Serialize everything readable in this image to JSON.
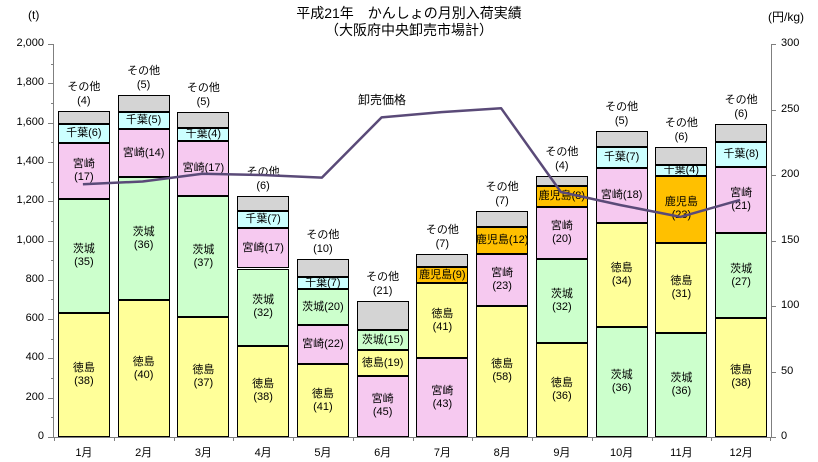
{
  "header": {
    "title_line1": "平成21年　かんしょの月別入荷実績",
    "title_line2": "（大阪府中央卸売市場計）",
    "unit_left": "(t)",
    "unit_right": "(円/kg)"
  },
  "chart_data": {
    "type": "bar",
    "subtype": "stacked-percentage-bars-with-price-line",
    "title": "平成21年　かんしょの月別入荷実績（大阪府中央卸売市場計）",
    "grid": "off",
    "legend": "none (labels drawn inside segments)",
    "categories": [
      "1月",
      "2月",
      "3月",
      "4月",
      "5月",
      "6月",
      "7月",
      "8月",
      "9月",
      "10月",
      "11月",
      "12月"
    ],
    "y_left": {
      "unit": "(t)",
      "min": 0,
      "max": 2000,
      "step": 200,
      "minor_step": 100
    },
    "y_right": {
      "unit": "(円/kg)",
      "min": 0,
      "max": 300,
      "step": 50
    },
    "region_colors": {
      "徳島": "#ffff99",
      "茨城": "#ccffcc",
      "宮崎": "#f6c9f0",
      "千葉": "#ccffff",
      "鹿児島": "#ffc000",
      "その他": "#d4d4d4"
    },
    "months": [
      {
        "month": "1月",
        "total_t": 1660,
        "segments": [
          {
            "name": "徳島",
            "pct": 38,
            "label_lines": [
              "徳島",
              "(38)"
            ]
          },
          {
            "name": "茨城",
            "pct": 35,
            "label_lines": [
              "茨城",
              "(35)"
            ]
          },
          {
            "name": "宮崎",
            "pct": 17,
            "label_lines": [
              "宮崎",
              "(17)"
            ]
          },
          {
            "name": "千葉",
            "pct": 6,
            "label_lines": [
              "千葉(6)"
            ]
          },
          {
            "name": "その他",
            "pct": 4,
            "label_lines": [
              "その他",
              "(4)"
            ],
            "label_outside": true
          }
        ]
      },
      {
        "month": "2月",
        "total_t": 1740,
        "segments": [
          {
            "name": "徳島",
            "pct": 40,
            "label_lines": [
              "徳島",
              "(40)"
            ]
          },
          {
            "name": "茨城",
            "pct": 36,
            "label_lines": [
              "茨城",
              "(36)"
            ]
          },
          {
            "name": "宮崎",
            "pct": 14,
            "label_lines": [
              "宮崎(14)"
            ]
          },
          {
            "name": "千葉",
            "pct": 5,
            "label_lines": [
              "千葉(5)"
            ]
          },
          {
            "name": "その他",
            "pct": 5,
            "label_lines": [
              "その他",
              "(5)"
            ],
            "label_outside": true
          }
        ]
      },
      {
        "month": "3月",
        "total_t": 1655,
        "segments": [
          {
            "name": "徳島",
            "pct": 37,
            "label_lines": [
              "徳島",
              "(37)"
            ]
          },
          {
            "name": "茨城",
            "pct": 37,
            "label_lines": [
              "茨城",
              "(37)"
            ]
          },
          {
            "name": "宮崎",
            "pct": 17,
            "label_lines": [
              "宮崎(17)"
            ]
          },
          {
            "name": "千葉",
            "pct": 4,
            "label_lines": [
              "千葉(4)"
            ]
          },
          {
            "name": "その他",
            "pct": 5,
            "label_lines": [
              "その他",
              "(5)"
            ],
            "label_outside": true
          }
        ]
      },
      {
        "month": "4月",
        "total_t": 1225,
        "segments": [
          {
            "name": "徳島",
            "pct": 38,
            "label_lines": [
              "徳島",
              "(38)"
            ]
          },
          {
            "name": "茨城",
            "pct": 32,
            "label_lines": [
              "茨城",
              "(32)"
            ]
          },
          {
            "name": "宮崎",
            "pct": 17,
            "label_lines": [
              "宮崎(17)"
            ]
          },
          {
            "name": "千葉",
            "pct": 7,
            "label_lines": [
              "千葉(7)"
            ]
          },
          {
            "name": "その他",
            "pct": 6,
            "label_lines": [
              "その他",
              "(6)"
            ],
            "label_outside": true
          }
        ]
      },
      {
        "month": "5月",
        "total_t": 905,
        "segments": [
          {
            "name": "徳島",
            "pct": 41,
            "label_lines": [
              "徳島",
              "(41)"
            ]
          },
          {
            "name": "宮崎",
            "pct": 22,
            "label_lines": [
              "宮崎(22)"
            ]
          },
          {
            "name": "茨城",
            "pct": 20,
            "label_lines": [
              "茨城(20)"
            ]
          },
          {
            "name": "千葉",
            "pct": 7,
            "label_lines": [
              "千葉(7)"
            ]
          },
          {
            "name": "その他",
            "pct": 10,
            "label_lines": [
              "その他",
              "(10)"
            ],
            "label_outside": true
          }
        ]
      },
      {
        "month": "6月",
        "total_t": 690,
        "segments": [
          {
            "name": "宮崎",
            "pct": 45,
            "label_lines": [
              "宮崎",
              "(45)"
            ]
          },
          {
            "name": "徳島",
            "pct": 19,
            "label_lines": [
              "徳島(19)"
            ]
          },
          {
            "name": "茨城",
            "pct": 15,
            "label_lines": [
              "茨城(15)"
            ]
          },
          {
            "name": "その他",
            "pct": 21,
            "label_lines": [
              "その他",
              "(21)"
            ],
            "label_outside": true
          }
        ]
      },
      {
        "month": "7月",
        "total_t": 930,
        "segments": [
          {
            "name": "宮崎",
            "pct": 43,
            "label_lines": [
              "宮崎",
              "(43)"
            ]
          },
          {
            "name": "徳島",
            "pct": 41,
            "label_lines": [
              "徳島",
              "(41)"
            ]
          },
          {
            "name": "鹿児島",
            "pct": 9,
            "label_lines": [
              "鹿児島(9)"
            ]
          },
          {
            "name": "その他",
            "pct": 7,
            "label_lines": [
              "その他",
              "(7)"
            ],
            "label_outside": true
          }
        ]
      },
      {
        "month": "8月",
        "total_t": 1150,
        "segments": [
          {
            "name": "徳島",
            "pct": 58,
            "label_lines": [
              "徳島",
              "(58)"
            ]
          },
          {
            "name": "宮崎",
            "pct": 23,
            "label_lines": [
              "宮崎",
              "(23)"
            ]
          },
          {
            "name": "鹿児島",
            "pct": 12,
            "label_lines": [
              "鹿児島(12)"
            ]
          },
          {
            "name": "その他",
            "pct": 7,
            "label_lines": [
              "その他",
              "(7)"
            ],
            "label_outside": true
          }
        ]
      },
      {
        "month": "9月",
        "total_t": 1330,
        "segments": [
          {
            "name": "徳島",
            "pct": 36,
            "label_lines": [
              "徳島",
              "(36)"
            ]
          },
          {
            "name": "茨城",
            "pct": 32,
            "label_lines": [
              "茨城",
              "(32)"
            ]
          },
          {
            "name": "宮崎",
            "pct": 20,
            "label_lines": [
              "宮崎",
              "(20)"
            ]
          },
          {
            "name": "鹿児島",
            "pct": 8,
            "label_lines": [
              "鹿児島(8)"
            ]
          },
          {
            "name": "その他",
            "pct": 4,
            "label_lines": [
              "その他",
              "(4)"
            ],
            "label_outside": true
          }
        ]
      },
      {
        "month": "10月",
        "total_t": 1555,
        "segments": [
          {
            "name": "茨城",
            "pct": 36,
            "label_lines": [
              "茨城",
              "(36)"
            ]
          },
          {
            "name": "徳島",
            "pct": 34,
            "label_lines": [
              "徳島",
              "(34)"
            ]
          },
          {
            "name": "宮崎",
            "pct": 18,
            "label_lines": [
              "宮崎(18)"
            ]
          },
          {
            "name": "千葉",
            "pct": 7,
            "label_lines": [
              "千葉(7)"
            ]
          },
          {
            "name": "その他",
            "pct": 5,
            "label_lines": [
              "その他",
              "(5)"
            ],
            "label_outside": true
          }
        ]
      },
      {
        "month": "11月",
        "total_t": 1475,
        "segments": [
          {
            "name": "茨城",
            "pct": 36,
            "label_lines": [
              "茨城",
              "(36)"
            ]
          },
          {
            "name": "徳島",
            "pct": 31,
            "label_lines": [
              "徳島",
              "(31)"
            ]
          },
          {
            "name": "鹿児島",
            "pct": 23,
            "label_lines": [
              "鹿児島",
              "(23)"
            ]
          },
          {
            "name": "千葉",
            "pct": 4,
            "label_lines": [
              "千葉(4)"
            ]
          },
          {
            "name": "その他",
            "pct": 6,
            "label_lines": [
              "その他",
              "(6)"
            ],
            "label_outside": true
          }
        ]
      },
      {
        "month": "12月",
        "total_t": 1595,
        "segments": [
          {
            "name": "徳島",
            "pct": 38,
            "label_lines": [
              "徳島",
              "(38)"
            ]
          },
          {
            "name": "茨城",
            "pct": 27,
            "label_lines": [
              "茨城",
              "(27)"
            ]
          },
          {
            "name": "宮崎",
            "pct": 21,
            "label_lines": [
              "宮崎",
              "(21)"
            ]
          },
          {
            "name": "千葉",
            "pct": 8,
            "label_lines": [
              "千葉(8)"
            ]
          },
          {
            "name": "その他",
            "pct": 6,
            "label_lines": [
              "その他",
              "(6)"
            ],
            "label_outside": true
          }
        ]
      }
    ],
    "price_series": {
      "name": "卸売価格",
      "unit": "円/kg",
      "color": "#5a4a78",
      "values": [
        193,
        195,
        201,
        200,
        198,
        244,
        248,
        251,
        187,
        177,
        168,
        181
      ]
    }
  }
}
